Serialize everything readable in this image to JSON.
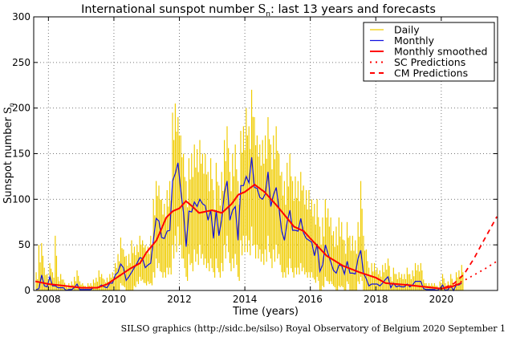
{
  "chart_data": {
    "type": "line",
    "title": {
      "prefix": "International sunspot number ",
      "symbol": "S",
      "sub": "n",
      "suffix": ": last 13 years and forecasts"
    },
    "xlabel": "Time (years)",
    "ylabel": {
      "prefix": "Sunspot number ",
      "symbol": "S",
      "sub": "n"
    },
    "xlim": [
      2007.55,
      2021.72
    ],
    "ylim": [
      0,
      300
    ],
    "xticks": [
      2008,
      2010,
      2012,
      2014,
      2016,
      2018,
      2020
    ],
    "yticks": [
      0,
      50,
      100,
      150,
      200,
      250,
      300
    ],
    "grid": true,
    "legend_position": "top-right",
    "colors": {
      "daily": "#f0cc00",
      "monthly": "#1010e0",
      "smoothed": "#ff0000",
      "sc": "#ff0000",
      "cm": "#ff0000"
    },
    "legend": [
      "Daily",
      "Monthly",
      "Monthly smoothed",
      "SC Predictions",
      "CM Predictions"
    ],
    "monthly_start": 2007.625,
    "monthly_step": 0.08333,
    "monthly": [
      1,
      2,
      17,
      5,
      4,
      15,
      5,
      5,
      3,
      3,
      3,
      0,
      1,
      1,
      3,
      7,
      1,
      1,
      1,
      1,
      1,
      3,
      3,
      4,
      6,
      4,
      3,
      8,
      8,
      17,
      20,
      29,
      25,
      11,
      15,
      20,
      25,
      30,
      36,
      35,
      25,
      28,
      30,
      56,
      79,
      76,
      58,
      57,
      65,
      66,
      120,
      128,
      140,
      110,
      86,
      48,
      87,
      86,
      97,
      92,
      100,
      95,
      93,
      77,
      88,
      57,
      88,
      60,
      78,
      107,
      120,
      77,
      88,
      92,
      55,
      115,
      115,
      125,
      118,
      146,
      113,
      112,
      102,
      100,
      106,
      130,
      92,
      105,
      113,
      90,
      65,
      55,
      75,
      88,
      66,
      66,
      65,
      79,
      63,
      57,
      55,
      53,
      38,
      51,
      21,
      28,
      50,
      40,
      31,
      22,
      19,
      28,
      27,
      18,
      32,
      19,
      19,
      18,
      35,
      44,
      19,
      13,
      5,
      7,
      7,
      7,
      5,
      8,
      12,
      15,
      3,
      8,
      4,
      5,
      4,
      4,
      7,
      4,
      6,
      10,
      10,
      10,
      2,
      1,
      1,
      1,
      1,
      0,
      2,
      6,
      0,
      1,
      5,
      0,
      6,
      6,
      8
    ],
    "daily_high": [
      20,
      50,
      52,
      25,
      18,
      30,
      20,
      60,
      15,
      18,
      12,
      5,
      8,
      10,
      15,
      22,
      10,
      8,
      5,
      8,
      8,
      12,
      14,
      22,
      18,
      12,
      14,
      18,
      20,
      30,
      40,
      58,
      45,
      38,
      40,
      55,
      48,
      50,
      60,
      55,
      50,
      48,
      60,
      100,
      120,
      115,
      100,
      95,
      110,
      120,
      195,
      205,
      190,
      170,
      150,
      120,
      145,
      150,
      160,
      155,
      165,
      150,
      150,
      130,
      145,
      110,
      140,
      115,
      130,
      165,
      180,
      130,
      150,
      160,
      120,
      175,
      180,
      200,
      180,
      220,
      190,
      170,
      160,
      165,
      170,
      190,
      160,
      170,
      180,
      150,
      130,
      120,
      140,
      150,
      120,
      125,
      120,
      130,
      115,
      110,
      110,
      100,
      95,
      100,
      70,
      80,
      100,
      90,
      80,
      65,
      70,
      80,
      75,
      55,
      75,
      60,
      60,
      55,
      75,
      120,
      60,
      45,
      25,
      30,
      30,
      25,
      22,
      28,
      30,
      35,
      15,
      25,
      18,
      20,
      18,
      18,
      25,
      18,
      22,
      30,
      28,
      30,
      12,
      8,
      8,
      8,
      8,
      5,
      10,
      18,
      8,
      10,
      18,
      8,
      20,
      22,
      28
    ],
    "daily_low": [
      0,
      0,
      0,
      0,
      0,
      0,
      0,
      0,
      0,
      0,
      0,
      0,
      0,
      0,
      0,
      0,
      0,
      0,
      0,
      0,
      0,
      0,
      0,
      0,
      0,
      0,
      0,
      0,
      0,
      0,
      0,
      8,
      5,
      0,
      0,
      0,
      5,
      10,
      15,
      12,
      8,
      10,
      8,
      20,
      35,
      30,
      20,
      20,
      25,
      25,
      50,
      60,
      70,
      50,
      35,
      15,
      40,
      30,
      45,
      40,
      50,
      40,
      35,
      30,
      35,
      20,
      35,
      20,
      30,
      50,
      60,
      30,
      35,
      40,
      15,
      55,
      60,
      60,
      55,
      70,
      50,
      50,
      45,
      40,
      45,
      60,
      35,
      45,
      50,
      40,
      20,
      20,
      25,
      35,
      20,
      25,
      25,
      30,
      25,
      20,
      20,
      20,
      12,
      15,
      0,
      5,
      15,
      10,
      10,
      5,
      0,
      5,
      5,
      0,
      10,
      0,
      0,
      0,
      10,
      15,
      0,
      0,
      0,
      0,
      0,
      0,
      0,
      0,
      0,
      0,
      0,
      0,
      0,
      0,
      0,
      0,
      0,
      0,
      0,
      0,
      0,
      0,
      0,
      0,
      0,
      0,
      0,
      0,
      0,
      0,
      0,
      0,
      0,
      0,
      0,
      0,
      0
    ],
    "smoothed": [
      [
        2007.6,
        10
      ],
      [
        2008.0,
        7
      ],
      [
        2008.5,
        5
      ],
      [
        2009.0,
        3
      ],
      [
        2009.5,
        3
      ],
      [
        2009.8,
        7
      ],
      [
        2010.0,
        12
      ],
      [
        2010.5,
        24
      ],
      [
        2010.8,
        30
      ],
      [
        2011.0,
        42
      ],
      [
        2011.3,
        55
      ],
      [
        2011.6,
        80
      ],
      [
        2011.8,
        87
      ],
      [
        2012.0,
        90
      ],
      [
        2012.2,
        98
      ],
      [
        2012.4,
        92
      ],
      [
        2012.6,
        85
      ],
      [
        2013.0,
        88
      ],
      [
        2013.3,
        85
      ],
      [
        2013.6,
        95
      ],
      [
        2013.8,
        105
      ],
      [
        2014.0,
        108
      ],
      [
        2014.3,
        116
      ],
      [
        2014.6,
        108
      ],
      [
        2015.0,
        92
      ],
      [
        2015.5,
        70
      ],
      [
        2015.8,
        65
      ],
      [
        2016.0,
        57
      ],
      [
        2016.5,
        38
      ],
      [
        2017.0,
        27
      ],
      [
        2017.5,
        20
      ],
      [
        2018.0,
        14
      ],
      [
        2018.3,
        8
      ],
      [
        2019.0,
        6
      ],
      [
        2019.5,
        4
      ],
      [
        2020.0,
        2
      ],
      [
        2020.3,
        4
      ],
      [
        2020.6,
        8
      ]
    ],
    "sc_predictions": [
      [
        2020.1,
        3
      ],
      [
        2020.4,
        6
      ],
      [
        2020.7,
        11
      ],
      [
        2021.0,
        17
      ],
      [
        2021.3,
        23
      ],
      [
        2021.7,
        32
      ]
    ],
    "cm_predictions": [
      [
        2020.1,
        3
      ],
      [
        2020.4,
        8
      ],
      [
        2020.7,
        18
      ],
      [
        2021.0,
        35
      ],
      [
        2021.3,
        55
      ],
      [
        2021.7,
        81
      ]
    ]
  },
  "footer": "SILSO graphics (http://sidc.be/silso)  Royal Observatory of Belgium  2020 September 1"
}
